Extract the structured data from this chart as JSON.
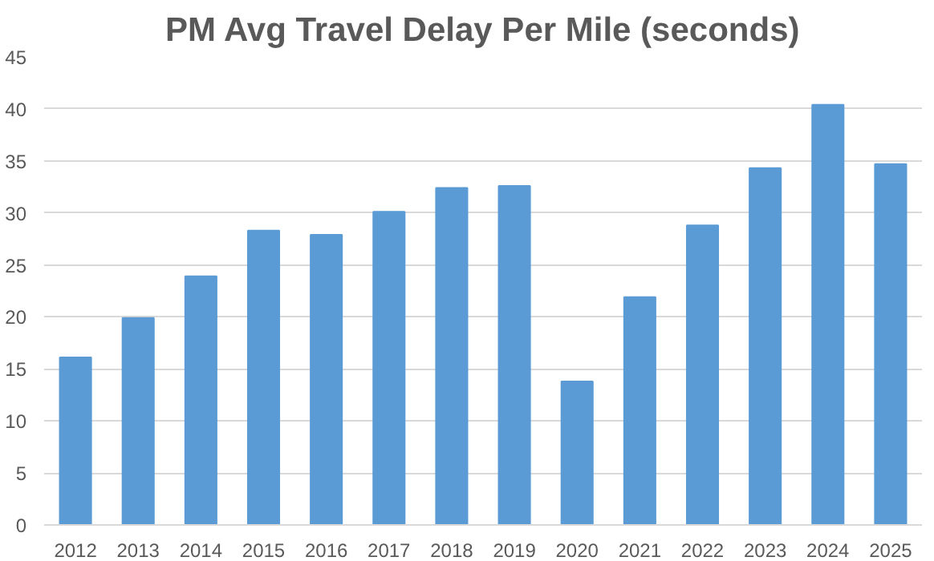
{
  "chart_data": {
    "type": "bar",
    "title": "PM Avg Travel Delay Per Mile (seconds)",
    "categories": [
      "2012",
      "2013",
      "2014",
      "2015",
      "2016",
      "2017",
      "2018",
      "2019",
      "2020",
      "2021",
      "2022",
      "2023",
      "2024",
      "2025"
    ],
    "values": [
      16.1,
      19.9,
      23.9,
      28.3,
      27.9,
      30.1,
      32.4,
      32.6,
      13.8,
      21.9,
      28.8,
      34.3,
      40.4,
      34.7
    ],
    "color": "#5b9bd5",
    "ylim": [
      0,
      45
    ],
    "yticks": [
      0,
      5,
      10,
      15,
      20,
      25,
      30,
      35,
      40,
      45
    ],
    "grid": "y"
  }
}
